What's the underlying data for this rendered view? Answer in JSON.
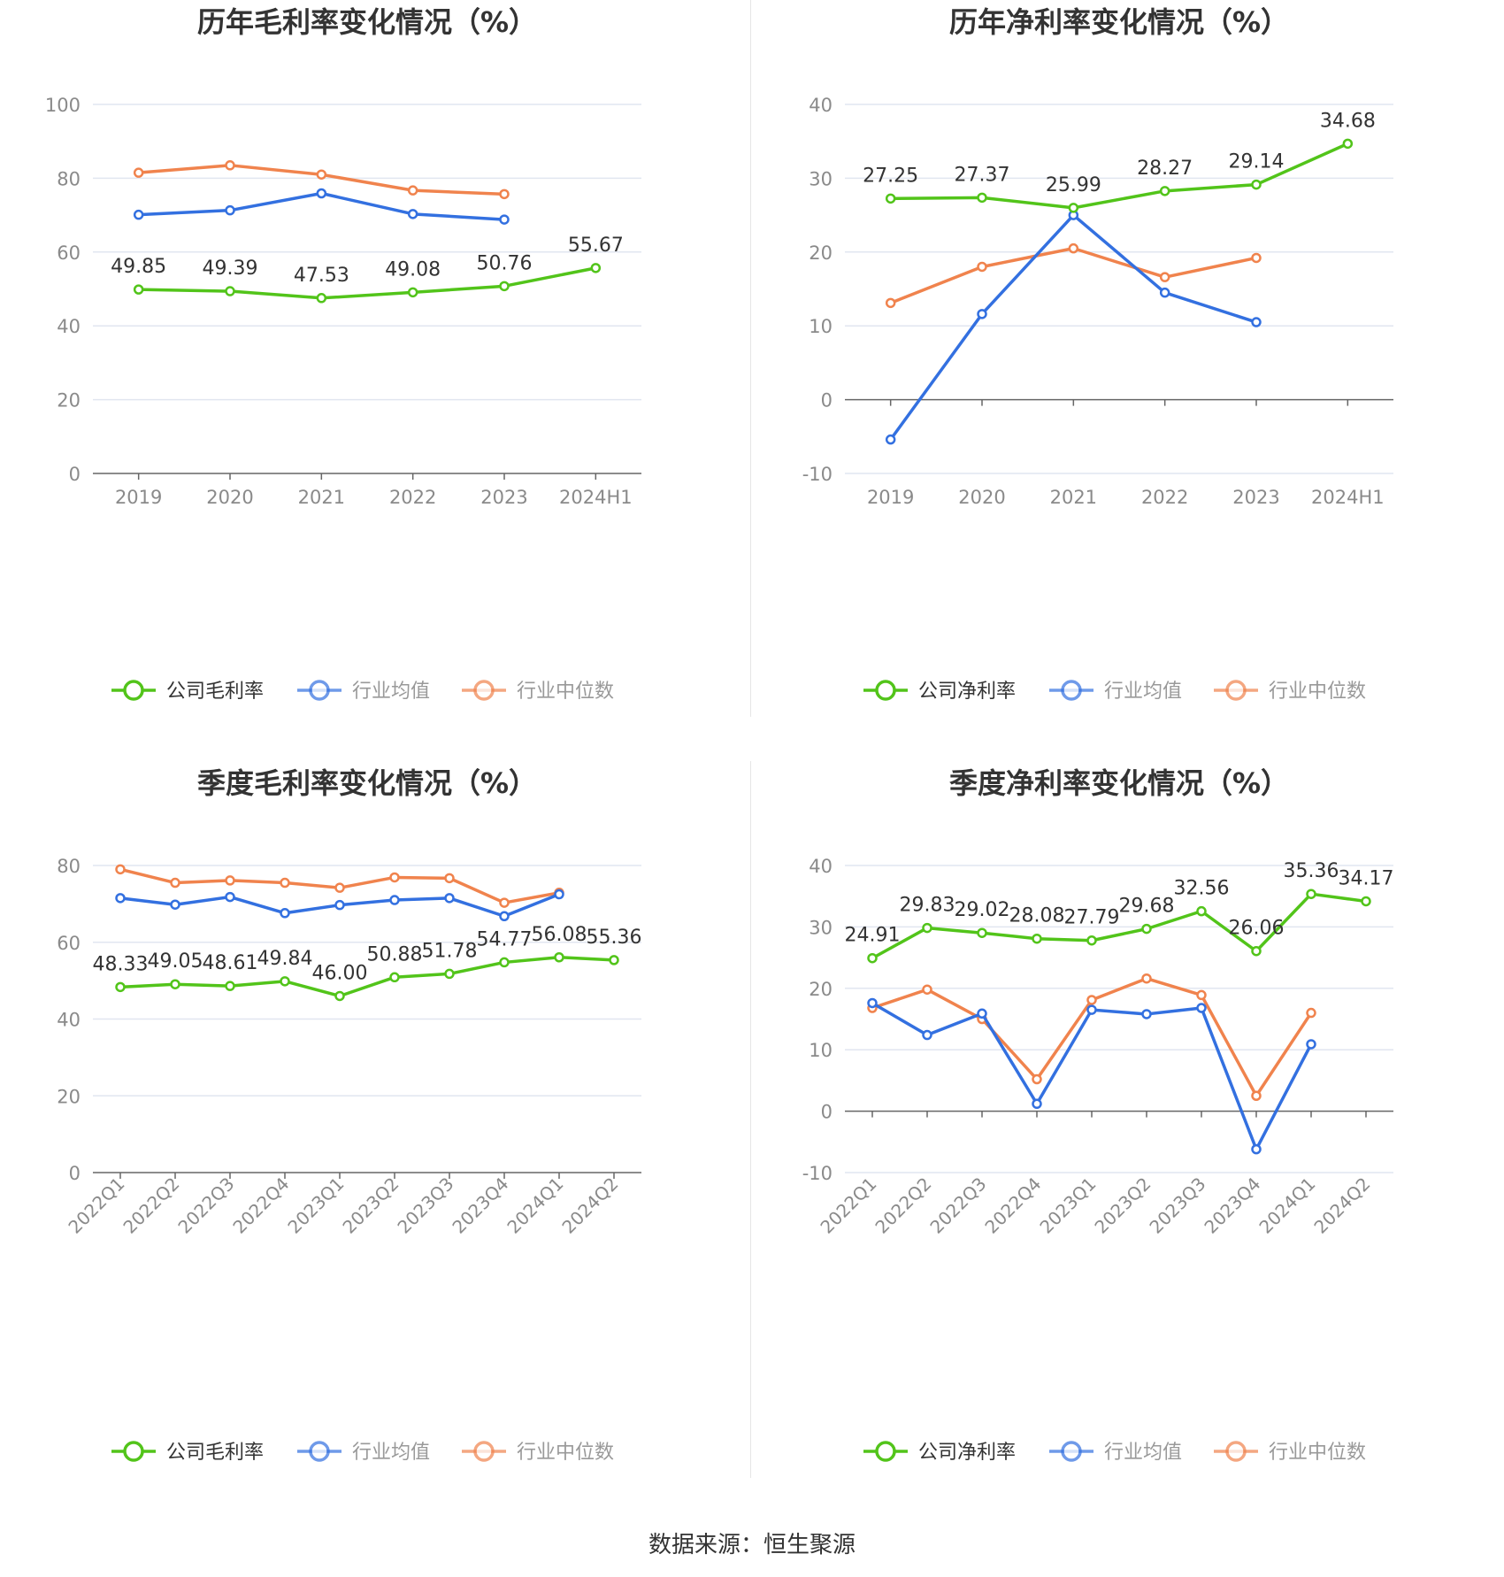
{
  "colors": {
    "company": "#52c41a",
    "industry_avg": "#3370e0",
    "industry_median": "#f0834d",
    "grid": "#e1e6f0",
    "axis": "#666666",
    "title": "#333333"
  },
  "source": "数据来源：恒生聚源",
  "chart_data": [
    {
      "type": "line",
      "title": "历年毛利率变化情况（%）",
      "categories": [
        "2019",
        "2020",
        "2021",
        "2022",
        "2023",
        "2024H1"
      ],
      "ylim": [
        0,
        100
      ],
      "yticks": [
        0,
        20,
        40,
        60,
        80,
        100
      ],
      "x_rotated": false,
      "legend_position": "bottom",
      "series": [
        {
          "name": "公司毛利率",
          "values": [
            49.85,
            49.39,
            47.53,
            49.08,
            50.76,
            55.67
          ],
          "labels": [
            "49.85",
            "49.39",
            "47.53",
            "49.08",
            "50.76",
            "55.67"
          ]
        },
        {
          "name": "行业均值",
          "values": [
            70.1,
            71.3,
            75.9,
            70.3,
            68.8,
            null
          ]
        },
        {
          "name": "行业中位数",
          "values": [
            81.5,
            83.5,
            81.0,
            76.7,
            75.7,
            null
          ]
        }
      ]
    },
    {
      "type": "line",
      "title": "历年净利率变化情况（%）",
      "categories": [
        "2019",
        "2020",
        "2021",
        "2022",
        "2023",
        "2024H1"
      ],
      "ylim": [
        -10,
        40
      ],
      "yticks": [
        -10,
        0,
        10,
        20,
        30,
        40
      ],
      "x_rotated": false,
      "legend_position": "bottom",
      "series": [
        {
          "name": "公司净利率",
          "values": [
            27.25,
            27.37,
            25.99,
            28.27,
            29.14,
            34.68
          ],
          "labels": [
            "27.25",
            "27.37",
            "25.99",
            "28.27",
            "29.14",
            "34.68"
          ]
        },
        {
          "name": "行业均值",
          "values": [
            -5.4,
            11.6,
            25.0,
            14.5,
            10.5,
            null
          ]
        },
        {
          "name": "行业中位数",
          "values": [
            13.1,
            18.0,
            20.5,
            16.6,
            19.2,
            null
          ]
        }
      ]
    },
    {
      "type": "line",
      "title": "季度毛利率变化情况（%）",
      "categories": [
        "2022Q1",
        "2022Q2",
        "2022Q3",
        "2022Q4",
        "2023Q1",
        "2023Q2",
        "2023Q3",
        "2023Q4",
        "2024Q1",
        "2024Q2"
      ],
      "ylim": [
        0,
        80
      ],
      "yticks": [
        0,
        20,
        40,
        60,
        80
      ],
      "x_rotated": true,
      "legend_position": "bottom",
      "series": [
        {
          "name": "公司毛利率",
          "values": [
            48.33,
            49.05,
            48.61,
            49.84,
            46.0,
            50.88,
            51.78,
            54.77,
            56.08,
            55.36
          ],
          "labels": [
            "48.33",
            "49.05",
            "48.61",
            "49.84",
            "46.00",
            "50.88",
            "51.78",
            "54.77",
            "56.08",
            "55.36"
          ]
        },
        {
          "name": "行业均值",
          "values": [
            71.5,
            69.8,
            71.8,
            67.6,
            69.7,
            71.0,
            71.5,
            66.8,
            72.5,
            null
          ]
        },
        {
          "name": "行业中位数",
          "values": [
            79.0,
            75.5,
            76.1,
            75.5,
            74.2,
            76.9,
            76.7,
            70.3,
            72.9,
            null
          ]
        }
      ]
    },
    {
      "type": "line",
      "title": "季度净利率变化情况（%）",
      "categories": [
        "2022Q1",
        "2022Q2",
        "2022Q3",
        "2022Q4",
        "2023Q1",
        "2023Q2",
        "2023Q3",
        "2023Q4",
        "2024Q1",
        "2024Q2"
      ],
      "ylim": [
        -10,
        40
      ],
      "yticks": [
        -10,
        0,
        10,
        20,
        30,
        40
      ],
      "x_rotated": true,
      "legend_position": "bottom",
      "series": [
        {
          "name": "公司净利率",
          "values": [
            24.91,
            29.83,
            29.02,
            28.08,
            27.79,
            29.68,
            32.56,
            26.06,
            35.36,
            34.17
          ],
          "labels": [
            "24.91",
            "29.83",
            "29.02",
            "28.08",
            "27.79",
            "29.68",
            "32.56",
            "26.06",
            "35.36",
            "34.17"
          ]
        },
        {
          "name": "行业均值",
          "values": [
            17.6,
            12.4,
            15.9,
            1.2,
            16.5,
            15.8,
            16.8,
            -6.2,
            10.9,
            null
          ]
        },
        {
          "name": "行业中位数",
          "values": [
            16.8,
            19.8,
            15.0,
            5.2,
            18.1,
            21.6,
            18.9,
            2.5,
            16.0,
            null
          ]
        }
      ]
    }
  ]
}
